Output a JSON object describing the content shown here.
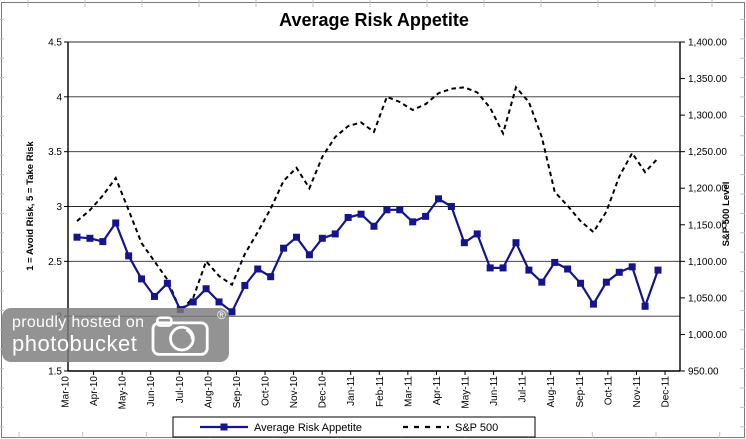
{
  "title": "Average Risk Appetite",
  "watermark": {
    "line1": "proudly hosted on",
    "line2": "photobucket",
    "registered": "®",
    "icon": "camera-icon"
  },
  "colors": {
    "risk_series": "#14148c",
    "sp_series": "#000000",
    "gridline": "#2a2a2a",
    "axis": "#000000",
    "watermark_bg": "#7b7b7b",
    "watermark_text": "#ffffff",
    "outer_border": "#7a7a7a",
    "sheet_stub": "#c2c2c2"
  },
  "chart_data": {
    "type": "line",
    "title": "Average Risk Appetite",
    "grid": "horizontal",
    "legend_position": "bottom",
    "x_tick_labels": [
      "Mar-10",
      "Apr-10",
      "May-10",
      "Jun-10",
      "Jul-10",
      "Aug-10",
      "Sep-10",
      "Oct-10",
      "Nov-10",
      "Dec-10",
      "Jan-11",
      "Feb-11",
      "Mar-11",
      "Apr-11",
      "May-11",
      "Jun-11",
      "Jul-11",
      "Aug-11",
      "Sep-11",
      "Oct-11",
      "Nov-11",
      "Dec-11"
    ],
    "left_axis": {
      "label": "1 = Avoid Risk, 5 = Take Risk",
      "min": 1.5,
      "max": 4.5,
      "step": 0.5,
      "tick_labels": [
        "4.5",
        "4",
        "3.5",
        "3",
        "2.5",
        "2",
        "1.5"
      ]
    },
    "right_axis": {
      "label": "S&P 500 Level",
      "min": 950,
      "max": 1400,
      "step": 50,
      "tick_labels": [
        "1,400.00",
        "1,350.00",
        "1,300.00",
        "1,250.00",
        "1,200.00",
        "1,150.00",
        "1,100.00",
        "1,050.00",
        "1,000.00",
        "950.00"
      ]
    },
    "series": [
      {
        "name": "Average Risk Appetite",
        "axis": "left",
        "style": "solid-line-square-markers",
        "color": "#14148c",
        "values": [
          2.72,
          2.71,
          2.68,
          2.85,
          2.55,
          2.34,
          2.18,
          2.3,
          2.06,
          2.13,
          2.25,
          2.13,
          2.04,
          2.28,
          2.43,
          2.36,
          2.62,
          2.72,
          2.56,
          2.71,
          2.75,
          2.9,
          2.93,
          2.82,
          2.97,
          2.97,
          2.86,
          2.91,
          3.07,
          3.0,
          2.67,
          2.75,
          2.44,
          2.44,
          2.67,
          2.42,
          2.31,
          2.49,
          2.43,
          2.3,
          2.11,
          2.31,
          2.4,
          2.45,
          2.09,
          2.42
        ]
      },
      {
        "name": "S&P 500",
        "axis": "right",
        "style": "dashed-line",
        "color": "#000000",
        "values": [
          1155,
          1170,
          1190,
          1214,
          1170,
          1125,
          1100,
          1075,
          1033,
          1050,
          1100,
          1080,
          1068,
          1110,
          1140,
          1172,
          1210,
          1228,
          1200,
          1243,
          1270,
          1285,
          1290,
          1277,
          1325,
          1318,
          1307,
          1315,
          1330,
          1336,
          1338,
          1331,
          1310,
          1275,
          1338,
          1318,
          1270,
          1195,
          1176,
          1155,
          1140,
          1168,
          1216,
          1248,
          1222,
          1241
        ]
      }
    ]
  }
}
